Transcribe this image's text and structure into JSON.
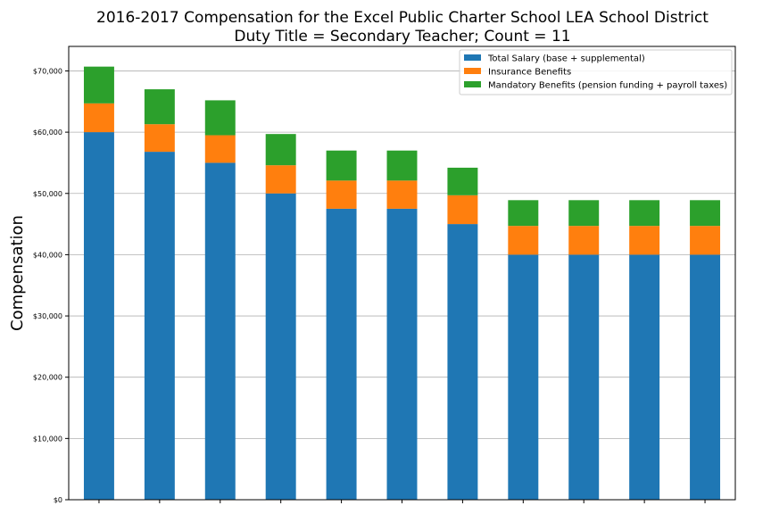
{
  "chart_data": {
    "type": "bar",
    "stacked": true,
    "title": "2016-2017 Compensation for the Excel Public Charter School LEA School District",
    "subtitle": "Duty Title = Secondary Teacher; Count = 11",
    "xlabel": "",
    "ylabel": "Compensation",
    "ylim": [
      0,
      74000
    ],
    "yticks": [
      0,
      10000,
      20000,
      30000,
      40000,
      50000,
      60000,
      70000
    ],
    "ytick_labels": [
      "$0",
      "$10,000",
      "$20,000",
      "$30,000",
      "$40,000",
      "$50,000",
      "$60,000",
      "$70,000"
    ],
    "grid": "horizontal",
    "legend_position": "top-right",
    "categories": [
      "",
      "",
      "",
      "",
      "",
      "",
      "",
      "",
      "",
      "",
      ""
    ],
    "series": [
      {
        "name": "Total Salary (base + supplemental)",
        "color": "#1f77b4",
        "values": [
          60000,
          56800,
          55000,
          50000,
          47500,
          47500,
          45000,
          40000,
          40000,
          40000,
          40000
        ]
      },
      {
        "name": "Insurance Benefits",
        "color": "#ff7f0e",
        "values": [
          4700,
          4500,
          4500,
          4600,
          4600,
          4600,
          4700,
          4700,
          4700,
          4700,
          4700
        ]
      },
      {
        "name": "Mandatory Benefits (pension funding + payroll taxes)",
        "color": "#2ca02c",
        "values": [
          6000,
          5700,
          5700,
          5100,
          4900,
          4900,
          4500,
          4200,
          4200,
          4200,
          4200
        ]
      }
    ]
  }
}
